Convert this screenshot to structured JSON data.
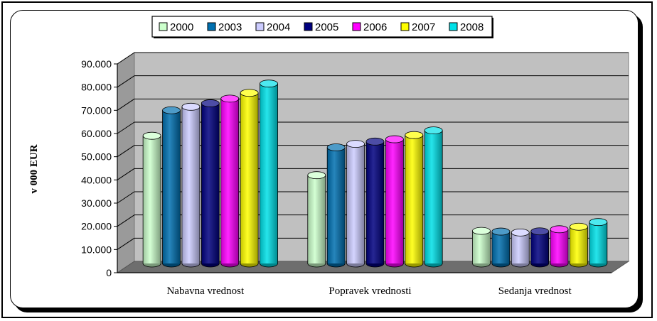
{
  "chart_data": {
    "type": "bar",
    "categories": [
      "Nabavna vrednost",
      "Popravek vrednosti",
      "Sedanja vrednost"
    ],
    "series": [
      {
        "name": "2000",
        "color": "#ccffcc",
        "values": [
          57500,
          40500,
          16500
        ]
      },
      {
        "name": "2003",
        "color": "#0070b0",
        "values": [
          68500,
          52500,
          16200
        ]
      },
      {
        "name": "2004",
        "color": "#ccccff",
        "values": [
          70000,
          54000,
          15800
        ]
      },
      {
        "name": "2005",
        "color": "#000080",
        "values": [
          71500,
          55000,
          16300
        ]
      },
      {
        "name": "2006",
        "color": "#ff00ff",
        "values": [
          73500,
          56000,
          17200
        ]
      },
      {
        "name": "2007",
        "color": "#ffff00",
        "values": [
          76000,
          57800,
          18300
        ]
      },
      {
        "name": "2008",
        "color": "#00e0e8",
        "values": [
          80000,
          59800,
          20300
        ]
      }
    ],
    "ylabel": "v 000 EUR",
    "xlabel": "",
    "yticks": [
      "0",
      "10.000",
      "20.000",
      "30.000",
      "40.000",
      "50.000",
      "60.000",
      "70.000",
      "80.000",
      "90.000"
    ],
    "ylim": [
      0,
      90000
    ],
    "grid": true,
    "legend_position": "top-center",
    "plot_background": "#c0c0c0"
  }
}
